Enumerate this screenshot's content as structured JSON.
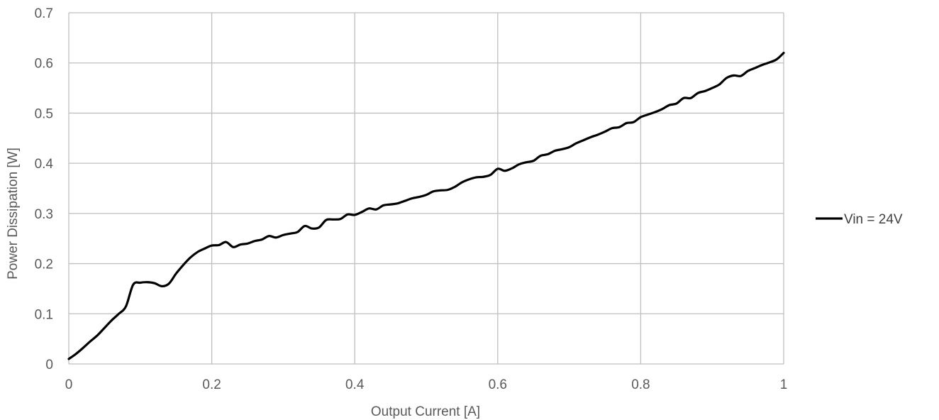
{
  "chart_data": {
    "type": "line",
    "title": "",
    "xlabel": "Output Current [A]",
    "ylabel": "Power Dissipation [W]",
    "xlim": [
      0,
      1
    ],
    "ylim": [
      0,
      0.7
    ],
    "x_ticks": [
      "0",
      "0.2",
      "0.4",
      "0.6",
      "0.8",
      "1"
    ],
    "y_ticks": [
      "0",
      "0.1",
      "0.2",
      "0.3",
      "0.4",
      "0.5",
      "0.6",
      "0.7"
    ],
    "grid": true,
    "legend_position": "right",
    "series": [
      {
        "name": "Vin = 24V",
        "color": "#000000",
        "x": [
          0,
          0.01,
          0.02,
          0.03,
          0.04,
          0.05,
          0.06,
          0.07,
          0.08,
          0.09,
          0.1,
          0.11,
          0.12,
          0.13,
          0.14,
          0.15,
          0.16,
          0.17,
          0.18,
          0.19,
          0.2,
          0.21,
          0.22,
          0.23,
          0.24,
          0.25,
          0.26,
          0.27,
          0.28,
          0.29,
          0.3,
          0.31,
          0.32,
          0.33,
          0.34,
          0.35,
          0.36,
          0.37,
          0.38,
          0.39,
          0.4,
          0.41,
          0.42,
          0.43,
          0.44,
          0.45,
          0.46,
          0.47,
          0.48,
          0.49,
          0.5,
          0.51,
          0.52,
          0.53,
          0.54,
          0.55,
          0.56,
          0.57,
          0.58,
          0.59,
          0.6,
          0.61,
          0.62,
          0.63,
          0.64,
          0.65,
          0.66,
          0.67,
          0.68,
          0.69,
          0.7,
          0.71,
          0.72,
          0.73,
          0.74,
          0.75,
          0.76,
          0.77,
          0.78,
          0.79,
          0.8,
          0.81,
          0.82,
          0.83,
          0.84,
          0.85,
          0.86,
          0.87,
          0.88,
          0.89,
          0.9,
          0.91,
          0.92,
          0.93,
          0.94,
          0.95,
          0.96,
          0.97,
          0.98,
          0.99,
          1.0
        ],
        "y": [
          0.01,
          0.02,
          0.032,
          0.045,
          0.057,
          0.072,
          0.087,
          0.1,
          0.115,
          0.158,
          0.162,
          0.163,
          0.161,
          0.155,
          0.16,
          0.18,
          0.197,
          0.212,
          0.223,
          0.23,
          0.236,
          0.237,
          0.243,
          0.233,
          0.238,
          0.24,
          0.245,
          0.248,
          0.255,
          0.252,
          0.257,
          0.26,
          0.263,
          0.275,
          0.27,
          0.272,
          0.287,
          0.288,
          0.289,
          0.298,
          0.297,
          0.303,
          0.31,
          0.308,
          0.316,
          0.318,
          0.32,
          0.325,
          0.33,
          0.333,
          0.337,
          0.344,
          0.346,
          0.347,
          0.353,
          0.362,
          0.368,
          0.372,
          0.373,
          0.377,
          0.389,
          0.385,
          0.39,
          0.398,
          0.402,
          0.405,
          0.415,
          0.418,
          0.425,
          0.428,
          0.432,
          0.44,
          0.446,
          0.452,
          0.457,
          0.463,
          0.47,
          0.472,
          0.48,
          0.482,
          0.492,
          0.497,
          0.502,
          0.508,
          0.516,
          0.519,
          0.53,
          0.53,
          0.54,
          0.544,
          0.55,
          0.557,
          0.57,
          0.575,
          0.574,
          0.584,
          0.59,
          0.596,
          0.601,
          0.607,
          0.62
        ]
      }
    ]
  }
}
